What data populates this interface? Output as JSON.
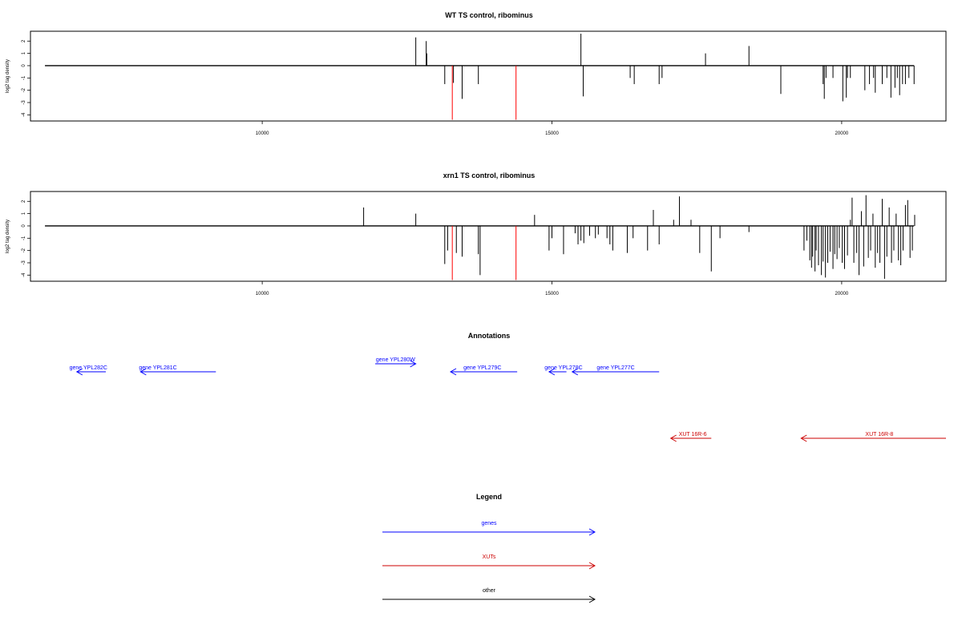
{
  "colors": {
    "bar": "#000000",
    "highlight": "#ff0000",
    "gene": "#0000ff",
    "xut": "#cc0000",
    "other": "#000000"
  },
  "chart_data": [
    {
      "type": "bar",
      "title": "WT TS control, ribominus",
      "ylabel": "log2 tag density",
      "xlim": [
        6000,
        21800
      ],
      "ylim": [
        -4.5,
        2.8
      ],
      "baseline_range": [
        6250,
        21250
      ],
      "xticks": [
        10000,
        15000,
        20000
      ],
      "yticks": [
        2,
        1,
        0,
        -1,
        -2,
        -3,
        -4
      ],
      "bars": [
        [
          12650,
          2.3
        ],
        [
          12830,
          2.0
        ],
        [
          12840,
          1.0
        ],
        [
          13150,
          -1.5
        ],
        [
          13280,
          -4.4,
          "red"
        ],
        [
          13300,
          -1.4
        ],
        [
          13450,
          -2.7
        ],
        [
          13730,
          -1.5
        ],
        [
          14380,
          -4.4,
          "red"
        ],
        [
          15500,
          2.6
        ],
        [
          15540,
          -2.5
        ],
        [
          16350,
          -1.0
        ],
        [
          16420,
          -1.5
        ],
        [
          16850,
          -1.5
        ],
        [
          16900,
          -1.0
        ],
        [
          17650,
          1.0
        ],
        [
          18400,
          1.6
        ],
        [
          18950,
          -2.3
        ],
        [
          19680,
          -1.5
        ],
        [
          19700,
          -2.7
        ],
        [
          19730,
          -1.0
        ],
        [
          19850,
          -1.0
        ],
        [
          20020,
          -2.9
        ],
        [
          20080,
          -2.6
        ],
        [
          20100,
          -1.0
        ],
        [
          20150,
          -1.0
        ],
        [
          20400,
          -2.0
        ],
        [
          20480,
          -1.5
        ],
        [
          20550,
          -1.0
        ],
        [
          20580,
          -2.2
        ],
        [
          20700,
          -1.5
        ],
        [
          20780,
          -1.0
        ],
        [
          20850,
          -2.6
        ],
        [
          20920,
          -1.8
        ],
        [
          20960,
          -1.0
        ],
        [
          21000,
          -2.4
        ],
        [
          21050,
          -1.5
        ],
        [
          21100,
          -1.5
        ],
        [
          21160,
          -1.0
        ],
        [
          21250,
          -1.5
        ]
      ]
    },
    {
      "type": "bar",
      "title": "xrn1 TS control, ribominus",
      "ylabel": "log2 tag density",
      "xlim": [
        6000,
        21800
      ],
      "ylim": [
        -4.5,
        2.8
      ],
      "baseline_range": [
        6250,
        21250
      ],
      "xticks": [
        10000,
        15000,
        20000
      ],
      "yticks": [
        2,
        1,
        0,
        -1,
        -2,
        -3,
        -4
      ],
      "bars": [
        [
          11750,
          1.5
        ],
        [
          12650,
          1.0
        ],
        [
          13150,
          -3.1
        ],
        [
          13200,
          -2.0
        ],
        [
          13280,
          -4.4,
          "red"
        ],
        [
          13350,
          -2.2
        ],
        [
          13450,
          -2.5
        ],
        [
          13730,
          -2.3
        ],
        [
          13760,
          -4.0
        ],
        [
          14380,
          -4.4,
          "red"
        ],
        [
          14700,
          0.9
        ],
        [
          14950,
          -2.0
        ],
        [
          15000,
          -1.0
        ],
        [
          15200,
          -2.3
        ],
        [
          15400,
          -0.6
        ],
        [
          15450,
          -1.5
        ],
        [
          15500,
          -1.2
        ],
        [
          15550,
          -1.4
        ],
        [
          15650,
          -0.8
        ],
        [
          15750,
          -1.0
        ],
        [
          15800,
          -0.7
        ],
        [
          15950,
          -1.0
        ],
        [
          16000,
          -1.5
        ],
        [
          16050,
          -2.0
        ],
        [
          16300,
          -2.2
        ],
        [
          16400,
          -1.0
        ],
        [
          16650,
          -2.0
        ],
        [
          16750,
          1.3
        ],
        [
          16850,
          -1.5
        ],
        [
          17100,
          0.5
        ],
        [
          17200,
          2.4
        ],
        [
          17400,
          0.5
        ],
        [
          17550,
          -2.2
        ],
        [
          17750,
          -3.7
        ],
        [
          17900,
          -1.0
        ],
        [
          18400,
          -0.5
        ],
        [
          19350,
          -2.0
        ],
        [
          19400,
          -1.2
        ],
        [
          19450,
          -2.8
        ],
        [
          19480,
          -3.4
        ],
        [
          19500,
          -2.5
        ],
        [
          19540,
          -3.7
        ],
        [
          19560,
          -2.0
        ],
        [
          19600,
          -3.2
        ],
        [
          19650,
          -4.0
        ],
        [
          19680,
          -2.9
        ],
        [
          19720,
          -4.2
        ],
        [
          19760,
          -3.0
        ],
        [
          19800,
          -2.1
        ],
        [
          19850,
          -3.5
        ],
        [
          19880,
          -2.3
        ],
        [
          19920,
          -2.7
        ],
        [
          19960,
          -1.8
        ],
        [
          20010,
          -3.0
        ],
        [
          20050,
          -3.5
        ],
        [
          20100,
          -2.4
        ],
        [
          20150,
          0.5
        ],
        [
          20180,
          2.3
        ],
        [
          20210,
          -3.0
        ],
        [
          20260,
          -2.2
        ],
        [
          20300,
          -4.0
        ],
        [
          20340,
          1.2
        ],
        [
          20380,
          -3.3
        ],
        [
          20420,
          2.5
        ],
        [
          20460,
          -2.6
        ],
        [
          20500,
          -2.0
        ],
        [
          20540,
          1.0
        ],
        [
          20580,
          -3.4
        ],
        [
          20620,
          -2.2
        ],
        [
          20660,
          -3.0
        ],
        [
          20700,
          2.2
        ],
        [
          20740,
          -4.3
        ],
        [
          20780,
          -2.5
        ],
        [
          20820,
          1.5
        ],
        [
          20860,
          -3.0
        ],
        [
          20900,
          -2.0
        ],
        [
          20940,
          1.0
        ],
        [
          20980,
          -2.8
        ],
        [
          21020,
          -3.2
        ],
        [
          21060,
          -2.0
        ],
        [
          21100,
          1.7
        ],
        [
          21140,
          2.1
        ],
        [
          21180,
          -2.6
        ],
        [
          21220,
          -2.0
        ],
        [
          21260,
          0.9
        ]
      ]
    }
  ],
  "annotations": {
    "title": "Annotations",
    "items": [
      {
        "label": "gene YPL282C",
        "color": "gene",
        "from": 7300,
        "to": 6800,
        "row": "upper",
        "label_at": 7000
      },
      {
        "label": "gene YPL281C",
        "color": "gene",
        "from": 9200,
        "to": 7900,
        "row": "upper",
        "label_at": 8200
      },
      {
        "label": "gene YPL280W",
        "color": "gene",
        "from": 11950,
        "to": 12650,
        "row": "upper-high",
        "label_at": 12300
      },
      {
        "label": "gene YPL279C",
        "color": "gene",
        "from": 14400,
        "to": 13250,
        "row": "upper",
        "label_at": 13800
      },
      {
        "label": "gene YPL278C",
        "color": "gene",
        "from": 15250,
        "to": 14950,
        "row": "upper",
        "label_at": 15200
      },
      {
        "label": "gene YPL277C",
        "color": "gene",
        "from": 16850,
        "to": 15350,
        "row": "upper",
        "label_at": 16100
      },
      {
        "label": "XUT 16R-6",
        "color": "xut",
        "from": 17750,
        "to": 17050,
        "row": "lower",
        "label_at": 17430
      },
      {
        "label": "XUT 16R-8",
        "color": "xut",
        "from": 21800,
        "to": 19300,
        "row": "lower",
        "label_at": 20650
      }
    ]
  },
  "legend": {
    "title": "Legend",
    "items": [
      {
        "label": "genes",
        "color": "gene"
      },
      {
        "label": "XUTs",
        "color": "xut"
      },
      {
        "label": "other",
        "color": "other"
      }
    ]
  }
}
